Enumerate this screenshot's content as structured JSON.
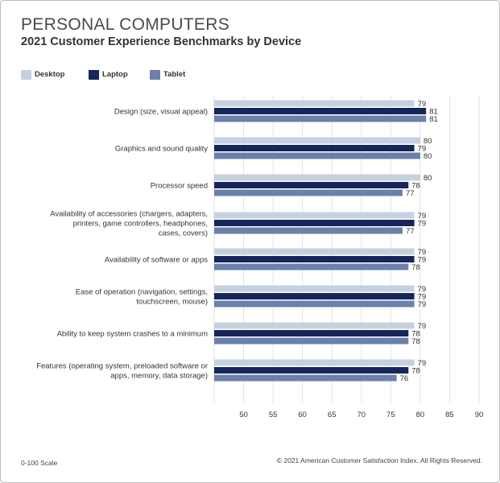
{
  "chart_data": {
    "type": "bar",
    "orientation": "horizontal",
    "title": "PERSONAL COMPUTERS",
    "subtitle": "2021 Customer Experience Benchmarks by Device",
    "categories": [
      [
        "Design (size, visual appeal)"
      ],
      [
        "Graphics and sound quality"
      ],
      [
        "Processor speed"
      ],
      [
        "Availability of accessories (chargers, adapters,",
        "printers, game controllers, headphones,",
        "cases, covers)"
      ],
      [
        "Availability of software or apps"
      ],
      [
        "Ease of operation (navigation, settings,",
        "touchscreen, mouse)"
      ],
      [
        "Ability to keep system crashes to a minimum"
      ],
      [
        "Features (operating system, preloaded software or",
        "apps, memory, data storage)"
      ]
    ],
    "series": [
      {
        "name": "Desktop",
        "color": "#c6d1e0",
        "values": [
          79,
          80,
          80,
          79,
          79,
          79,
          79,
          79
        ]
      },
      {
        "name": "Laptop",
        "color": "#16265a",
        "values": [
          81,
          79,
          78,
          79,
          79,
          79,
          78,
          78
        ]
      },
      {
        "name": "Tablet",
        "color": "#6b80ab",
        "values": [
          81,
          80,
          77,
          77,
          78,
          79,
          78,
          76
        ]
      }
    ],
    "xlim": [
      45,
      90
    ],
    "xticks": [
      50,
      55,
      60,
      65,
      70,
      75,
      80,
      85,
      90
    ],
    "grid": true,
    "legend": "top-left"
  },
  "footer": {
    "scale_note": "0-100 Scale",
    "copyright": "© 2021 American Customer Satisfaction Index. All Rights Reserved."
  }
}
